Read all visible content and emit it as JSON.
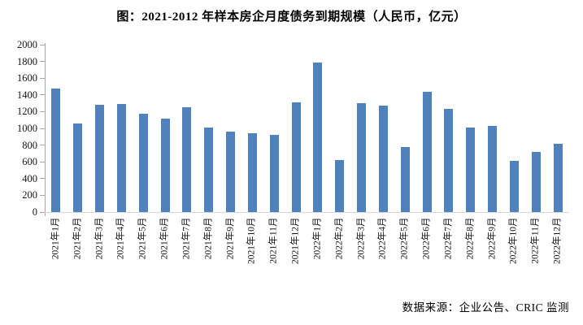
{
  "title": "图：2021-2012 年样本房企月度债务到期规模（人民币，亿元）",
  "source_note": "数据来源：企业公告、CRIC 监测",
  "colors": {
    "bar": "#4f81bd",
    "y_axis": "#a6a6a6",
    "x_axis": "#d9d9d9",
    "text": "#151515",
    "background": "#ffffff"
  },
  "chart_data": {
    "type": "bar",
    "title": "图：2021-2012 年样本房企月度债务到期规模（人民币，亿元）",
    "xlabel": "",
    "ylabel": "",
    "ylim": [
      0,
      2000
    ],
    "ytick_step": 200,
    "grid": false,
    "legend": false,
    "x_label_rotation": -90,
    "categories": [
      "2021年1月",
      "2021年2月",
      "2021年3月",
      "2021年4月",
      "2021年5月",
      "2021年6月",
      "2021年7月",
      "2021年8月",
      "2021年9月",
      "2021年10月",
      "2021年11月",
      "2021年12月",
      "2022年1月",
      "2022年2月",
      "2022年3月",
      "2022年4月",
      "2022年5月",
      "2022年6月",
      "2022年7月",
      "2022年8月",
      "2022年9月",
      "2022年10月",
      "2022年11月",
      "2022年12月"
    ],
    "values": [
      1480,
      1060,
      1285,
      1290,
      1170,
      1115,
      1250,
      1010,
      965,
      940,
      920,
      1310,
      1790,
      620,
      1300,
      1270,
      775,
      1440,
      1235,
      1005,
      1030,
      610,
      715,
      820
    ],
    "source": "数据来源：企业公告、CRIC 监测"
  }
}
